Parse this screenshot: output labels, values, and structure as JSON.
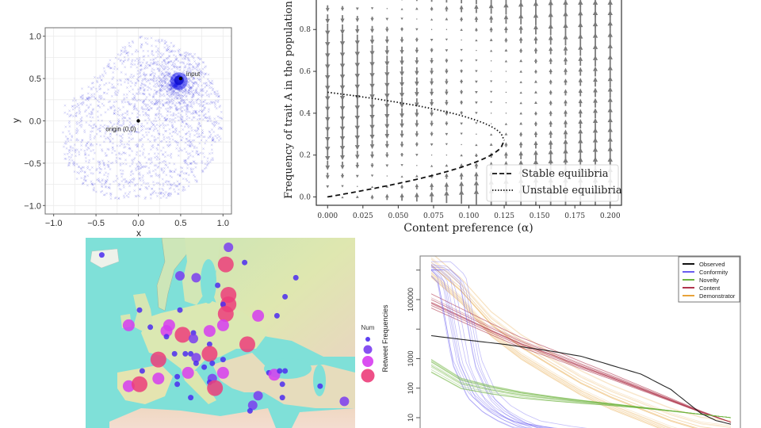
{
  "chart_data": [
    {
      "id": "scatter",
      "type": "scatter",
      "title": "",
      "xlabel": "x",
      "ylabel": "y",
      "xlim": [
        -1.1,
        1.1
      ],
      "ylim": [
        -1.1,
        1.1
      ],
      "xticks": [
        -1.0,
        -0.5,
        0.0,
        0.5,
        1.0
      ],
      "yticks": [
        -1.0,
        -0.5,
        0.0,
        0.5,
        1.0
      ],
      "xtick_labels": [
        "−1.0",
        "−0.5",
        "0.0",
        "0.5",
        "1.0"
      ],
      "ytick_labels": [
        "−1.0",
        "−0.5",
        "0.0",
        "0.5",
        "1.0"
      ],
      "grid": true,
      "point_color": "#3333dd",
      "cloud": {
        "description": "samples within unit disk, densest near input, sparse in upper-left/lower-right",
        "n_points": 6000,
        "cluster_center": [
          0.5,
          0.5
        ]
      },
      "annotations": [
        {
          "label": "input",
          "x": 0.5,
          "y": 0.5
        },
        {
          "label": "origin (0,0)",
          "x": 0.0,
          "y": 0.0
        }
      ]
    },
    {
      "id": "phase",
      "type": "quiver",
      "xlabel": "Content preference (α)",
      "ylabel": "Frequency of trait A in the population",
      "xlim": [
        -0.008,
        0.208
      ],
      "ylim": [
        -0.04,
        0.96
      ],
      "xticks": [
        0.0,
        0.025,
        0.05,
        0.075,
        0.1,
        0.125,
        0.15,
        0.175,
        0.2
      ],
      "xtick_labels": [
        "0.000",
        "0.025",
        "0.050",
        "0.075",
        "0.100",
        "0.125",
        "0.150",
        "0.175",
        "0.200"
      ],
      "yticks": [
        0.0,
        0.2,
        0.4,
        0.6,
        0.8
      ],
      "ytick_labels": [
        "0.0",
        "0.2",
        "0.4",
        "0.6",
        "0.8"
      ],
      "grid_x": {
        "start": 0.0,
        "stop": 0.2,
        "n": 20
      },
      "grid_y": {
        "start": 0.0,
        "stop": 0.95,
        "n": 20
      },
      "arrow_color": "#7a7a7a",
      "legend": {
        "position": "lower-right",
        "entries": [
          {
            "label": "Stable equilibria",
            "style": "dashed"
          },
          {
            "label": "Unstable equilibria",
            "style": "dotted"
          }
        ]
      },
      "bifurcation_alpha": 0.125,
      "stable_curve": "y = 0.5 - sqrt(0.25 - 2*alpha), alpha in [0, 0.125]",
      "unstable_curve": "y = 0.5 + sqrt(0.25 - 2*alpha), alpha in [0, 0.125]"
    },
    {
      "id": "map",
      "type": "bubble-map",
      "title": "",
      "legend": {
        "title": "Num",
        "position": "right",
        "levels": [
          1,
          2,
          3,
          4
        ],
        "colors": [
          "#4b2bf0",
          "#7a3df0",
          "#d63cf0",
          "#ec3d7a"
        ]
      },
      "bubbles": [
        {
          "x": 0.06,
          "y": 0.09,
          "level": 1
        },
        {
          "x": 0.53,
          "y": 0.05,
          "level": 2
        },
        {
          "x": 0.52,
          "y": 0.14,
          "level": 4
        },
        {
          "x": 0.59,
          "y": 0.13,
          "level": 1
        },
        {
          "x": 0.35,
          "y": 0.2,
          "level": 2
        },
        {
          "x": 0.41,
          "y": 0.21,
          "level": 2
        },
        {
          "x": 0.49,
          "y": 0.25,
          "level": 1
        },
        {
          "x": 0.78,
          "y": 0.21,
          "level": 1
        },
        {
          "x": 0.53,
          "y": 0.3,
          "level": 4
        },
        {
          "x": 0.53,
          "y": 0.35,
          "level": 4
        },
        {
          "x": 0.51,
          "y": 0.35,
          "level": 1
        },
        {
          "x": 0.52,
          "y": 0.4,
          "level": 4
        },
        {
          "x": 0.74,
          "y": 0.31,
          "level": 1
        },
        {
          "x": 0.35,
          "y": 0.38,
          "level": 1
        },
        {
          "x": 0.2,
          "y": 0.38,
          "level": 1
        },
        {
          "x": 0.64,
          "y": 0.41,
          "level": 3
        },
        {
          "x": 0.71,
          "y": 0.41,
          "level": 1
        },
        {
          "x": 0.16,
          "y": 0.46,
          "level": 3
        },
        {
          "x": 0.24,
          "y": 0.47,
          "level": 1
        },
        {
          "x": 0.31,
          "y": 0.46,
          "level": 3
        },
        {
          "x": 0.3,
          "y": 0.49,
          "level": 3
        },
        {
          "x": 0.3,
          "y": 0.52,
          "level": 1
        },
        {
          "x": 0.36,
          "y": 0.51,
          "level": 4
        },
        {
          "x": 0.4,
          "y": 0.5,
          "level": 1
        },
        {
          "x": 0.4,
          "y": 0.53,
          "level": 2
        },
        {
          "x": 0.46,
          "y": 0.49,
          "level": 3
        },
        {
          "x": 0.51,
          "y": 0.46,
          "level": 3
        },
        {
          "x": 0.6,
          "y": 0.56,
          "level": 4
        },
        {
          "x": 0.46,
          "y": 0.56,
          "level": 1
        },
        {
          "x": 0.46,
          "y": 0.61,
          "level": 4
        },
        {
          "x": 0.33,
          "y": 0.61,
          "level": 1
        },
        {
          "x": 0.37,
          "y": 0.61,
          "level": 1
        },
        {
          "x": 0.39,
          "y": 0.61,
          "level": 1
        },
        {
          "x": 0.41,
          "y": 0.63,
          "level": 2
        },
        {
          "x": 0.41,
          "y": 0.66,
          "level": 1
        },
        {
          "x": 0.47,
          "y": 0.66,
          "level": 1
        },
        {
          "x": 0.44,
          "y": 0.68,
          "level": 1
        },
        {
          "x": 0.51,
          "y": 0.64,
          "level": 1
        },
        {
          "x": 0.27,
          "y": 0.64,
          "level": 4
        },
        {
          "x": 0.21,
          "y": 0.7,
          "level": 1
        },
        {
          "x": 0.27,
          "y": 0.74,
          "level": 3
        },
        {
          "x": 0.38,
          "y": 0.71,
          "level": 3
        },
        {
          "x": 0.51,
          "y": 0.71,
          "level": 3
        },
        {
          "x": 0.34,
          "y": 0.73,
          "level": 1
        },
        {
          "x": 0.34,
          "y": 0.77,
          "level": 1
        },
        {
          "x": 0.47,
          "y": 0.74,
          "level": 2
        },
        {
          "x": 0.46,
          "y": 0.76,
          "level": 1
        },
        {
          "x": 0.48,
          "y": 0.79,
          "level": 4
        },
        {
          "x": 0.16,
          "y": 0.78,
          "level": 3
        },
        {
          "x": 0.2,
          "y": 0.77,
          "level": 4
        },
        {
          "x": 0.39,
          "y": 0.84,
          "level": 1
        },
        {
          "x": 0.68,
          "y": 0.71,
          "level": 1
        },
        {
          "x": 0.7,
          "y": 0.72,
          "level": 3
        },
        {
          "x": 0.72,
          "y": 0.7,
          "level": 1
        },
        {
          "x": 0.74,
          "y": 0.7,
          "level": 1
        },
        {
          "x": 0.73,
          "y": 0.77,
          "level": 1
        },
        {
          "x": 0.87,
          "y": 0.78,
          "level": 1
        },
        {
          "x": 0.64,
          "y": 0.83,
          "level": 2
        },
        {
          "x": 0.73,
          "y": 0.84,
          "level": 1
        },
        {
          "x": 0.62,
          "y": 0.88,
          "level": 2
        },
        {
          "x": 0.61,
          "y": 0.91,
          "level": 1
        },
        {
          "x": 0.96,
          "y": 0.86,
          "level": 2
        }
      ]
    },
    {
      "id": "retweets",
      "type": "line",
      "title": "",
      "xlabel": "",
      "ylabel": "Retweet Frequencies",
      "yscale": "log",
      "ylim": [
        2,
        3000000
      ],
      "yticks": [
        10,
        100,
        1000,
        10000,
        100000,
        1000000
      ],
      "ytick_labels": [
        "10",
        "100",
        "1000",
        "",
        "100000",
        ""
      ],
      "xlim": [
        0,
        1
      ],
      "legend": {
        "position": "top-right",
        "entries": [
          {
            "label": "Observed",
            "color": "#111111"
          },
          {
            "label": "Conformity",
            "color": "#6a5cf0"
          },
          {
            "label": "Novelty",
            "color": "#6db33f"
          },
          {
            "label": "Content",
            "color": "#b0344c"
          },
          {
            "label": "Demonstrator",
            "color": "#e8a33a"
          }
        ]
      },
      "series": [
        {
          "name": "Observed",
          "x": [
            0.0,
            0.1,
            0.25,
            0.4,
            0.5,
            0.6,
            0.7,
            0.8,
            0.9,
            0.95,
            1.0
          ],
          "y": [
            6000,
            4500,
            3000,
            1800,
            1200,
            600,
            300,
            90,
            14,
            8,
            6
          ]
        },
        {
          "name": "Conformity",
          "x": [
            0.0,
            0.05,
            0.1,
            0.15,
            0.2,
            0.25,
            0.3,
            0.4,
            0.5,
            0.6,
            0.7,
            0.85
          ],
          "y": [
            1500000,
            500000,
            800,
            60,
            20,
            10,
            6,
            4,
            3,
            3,
            2,
            2
          ]
        },
        {
          "name": "Novelty",
          "x": [
            0.0,
            0.1,
            0.2,
            0.3,
            0.4,
            0.5,
            0.6,
            0.7,
            0.8,
            0.9,
            1.0
          ],
          "y": [
            600,
            150,
            90,
            60,
            45,
            35,
            28,
            22,
            17,
            13,
            10
          ]
        },
        {
          "name": "Content",
          "x": [
            0.0,
            0.1,
            0.2,
            0.3,
            0.4,
            0.5,
            0.6,
            0.7,
            0.8,
            0.9,
            1.0
          ],
          "y": [
            90000,
            30000,
            10000,
            3500,
            1500,
            600,
            250,
            100,
            40,
            16,
            7
          ]
        },
        {
          "name": "Demonstrator",
          "x": [
            0.0,
            0.1,
            0.2,
            0.3,
            0.4,
            0.5,
            0.6,
            0.7,
            0.8,
            0.9,
            1.0
          ],
          "y": [
            1500000,
            200000,
            15000,
            2500,
            600,
            150,
            50,
            20,
            8,
            4,
            3
          ]
        }
      ]
    }
  ]
}
